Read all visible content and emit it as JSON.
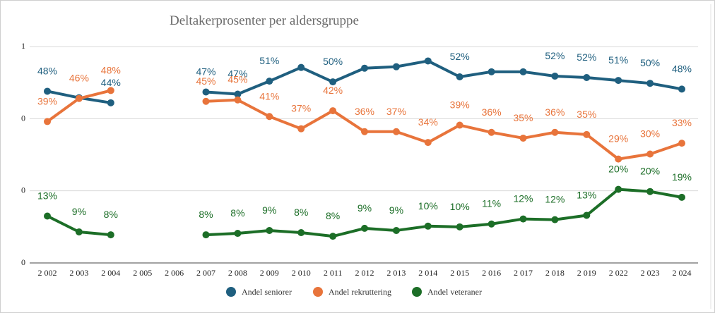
{
  "colors": {
    "seniorer": "#1f5f7f",
    "rekruttering": "#e8743b",
    "veteraner": "#1c6e27",
    "grid": "#d9d9d9",
    "frame": "#cfcfcf"
  },
  "chart_data": {
    "type": "line",
    "title": "Deltakerprosenter per aldersgruppe",
    "categories": [
      "2 002",
      "2 003",
      "2 004",
      "2 005",
      "2 006",
      "2 007",
      "2 008",
      "2 009",
      "2 010",
      "2 011",
      "2 012",
      "2 013",
      "2 014",
      "2 015",
      "2 016",
      "2 017",
      "2 018",
      "2 019",
      "2 022",
      "2 023",
      "2 024"
    ],
    "y_ticks": [
      "1",
      "0",
      "0",
      "0"
    ],
    "grid": true,
    "legend_position": "bottom",
    "series": [
      {
        "name": "Andel seniorer",
        "color_key": "seniorer",
        "values": [
          0.38,
          0.29,
          0.22,
          null,
          null,
          0.37,
          0.34,
          0.52,
          0.71,
          0.51,
          0.7,
          0.72,
          0.8,
          0.58,
          0.65,
          0.65,
          0.59,
          0.57,
          0.53,
          0.49,
          0.41
        ],
        "labels": [
          "48%",
          "",
          "44%",
          null,
          null,
          "47%",
          "47%",
          "51%",
          "",
          "50%",
          "",
          "",
          "",
          "52%",
          "",
          "",
          "52%",
          "52%",
          "51%",
          "50%",
          "48%"
        ]
      },
      {
        "name": "Andel rekruttering",
        "color_key": "rekruttering",
        "values": [
          -0.04,
          0.28,
          0.39,
          null,
          null,
          0.24,
          0.26,
          0.03,
          -0.14,
          0.11,
          -0.18,
          -0.18,
          -0.33,
          -0.09,
          -0.19,
          -0.27,
          -0.19,
          -0.22,
          -0.56,
          -0.49,
          -0.34
        ],
        "labels": [
          "39%",
          "46%",
          "48%",
          null,
          null,
          "45%",
          "45%",
          "41%",
          "37%",
          "42%",
          "36%",
          "37%",
          "34%",
          "39%",
          "36%",
          "35%",
          "36%",
          "35%",
          "29%",
          "30%",
          "33%"
        ]
      },
      {
        "name": "Andel veteraner",
        "color_key": "veteraner",
        "values": [
          -1.35,
          -1.57,
          -1.61,
          null,
          null,
          -1.61,
          -1.59,
          -1.55,
          -1.58,
          -1.63,
          -1.52,
          -1.55,
          -1.49,
          -1.5,
          -1.46,
          -1.39,
          -1.4,
          -1.34,
          -0.98,
          -1.01,
          -1.09
        ],
        "labels": [
          "13%",
          "9%",
          "8%",
          null,
          null,
          "8%",
          "8%",
          "9%",
          "8%",
          "8%",
          "9%",
          "9%",
          "10%",
          "10%",
          "11%",
          "12%",
          "12%",
          "13%",
          "20%",
          "20%",
          "19%"
        ]
      }
    ]
  }
}
